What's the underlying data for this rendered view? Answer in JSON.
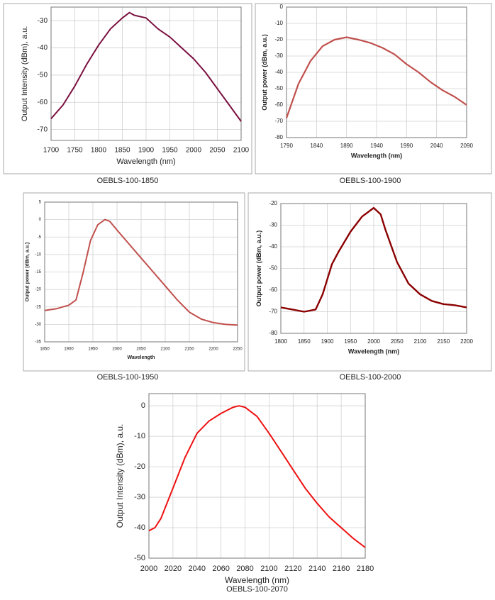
{
  "chart_data": [
    {
      "type": "line",
      "title": "OEBLS-100-1850",
      "x_label": "Wavelength (nm)",
      "y_label": "Output Intensity (dBm), a.u.",
      "x": [
        1700,
        1725,
        1750,
        1775,
        1800,
        1825,
        1850,
        1865,
        1875,
        1900,
        1925,
        1950,
        1975,
        2000,
        2025,
        2050,
        2075,
        2100
      ],
      "values": [
        -66,
        -61,
        -54,
        -46,
        -39,
        -33,
        -29,
        -27,
        -28,
        -29,
        -33,
        -36,
        -40,
        -44,
        -49,
        -55,
        -61,
        -67
      ],
      "color": "#7a1040",
      "xlim": [
        1700,
        2100
      ],
      "ylim": [
        -74,
        -25
      ],
      "xticks": [
        1700,
        1750,
        1800,
        1850,
        1900,
        1950,
        2000,
        2050,
        2100
      ],
      "yticks": [
        -70,
        -60,
        -50,
        -40,
        -30
      ],
      "grid": true
    },
    {
      "type": "line",
      "title": "OEBLS-100-1900",
      "x_label": "Wavelength (nm)",
      "y_label": "Output power (dBm, a.u.)",
      "x": [
        1790,
        1810,
        1830,
        1850,
        1870,
        1890,
        1910,
        1930,
        1950,
        1970,
        1990,
        2010,
        2030,
        2050,
        2070,
        2090
      ],
      "values": [
        -68,
        -47,
        -33,
        -24,
        -20,
        -18.5,
        -20,
        -22,
        -25,
        -29,
        -35,
        -40,
        -46,
        -51,
        -55,
        -60
      ],
      "color": "#c0504d",
      "xlim": [
        1790,
        2090
      ],
      "ylim": [
        -80,
        0
      ],
      "xticks": [
        1790,
        1840,
        1890,
        1940,
        1990,
        2040,
        2090
      ],
      "yticks": [
        -80,
        -70,
        -60,
        -50,
        -40,
        -30,
        -20,
        -10,
        0
      ],
      "grid": true
    },
    {
      "type": "line",
      "title": "OEBLS-100-1950",
      "x_label": "Wavelength",
      "y_label": "Output power (dBm, a.u.)",
      "x": [
        1850,
        1875,
        1900,
        1915,
        1930,
        1945,
        1960,
        1975,
        1985,
        2000,
        2025,
        2050,
        2075,
        2100,
        2125,
        2150,
        2175,
        2200,
        2225,
        2250
      ],
      "values": [
        -26,
        -25.5,
        -24.5,
        -23,
        -15,
        -6,
        -1.5,
        0,
        -0.5,
        -3,
        -7,
        -11,
        -15,
        -19,
        -23,
        -26.5,
        -28.5,
        -29.5,
        -30,
        -30.2
      ],
      "color": "#c0504d",
      "xlim": [
        1850,
        2250
      ],
      "ylim": [
        -35,
        5
      ],
      "xticks": [
        1850,
        1900,
        1950,
        2000,
        2050,
        2100,
        2150,
        2200,
        2250
      ],
      "yticks": [
        -35,
        -30,
        -25,
        -20,
        -15,
        -10,
        -5,
        0,
        5
      ],
      "grid": true
    },
    {
      "type": "line",
      "title": "OEBLS-100-2000",
      "x_label": "Wavelength (nm)",
      "y_label": "Output power (dBm, a.u.)",
      "x": [
        1800,
        1825,
        1850,
        1875,
        1890,
        1900,
        1910,
        1925,
        1950,
        1975,
        2000,
        2015,
        2025,
        2050,
        2075,
        2100,
        2125,
        2150,
        2175,
        2200
      ],
      "values": [
        -68,
        -69,
        -70,
        -69,
        -62,
        -55,
        -48,
        -42,
        -33,
        -26,
        -22,
        -25,
        -32,
        -47,
        -57,
        -62,
        -65,
        -66.5,
        -67,
        -68
      ],
      "color": "#8b0000",
      "xlim": [
        1800,
        2200
      ],
      "ylim": [
        -80,
        -20
      ],
      "xticks": [
        1800,
        1850,
        1900,
        1950,
        2000,
        2050,
        2100,
        2150,
        2200
      ],
      "yticks": [
        -80,
        -70,
        -60,
        -50,
        -40,
        -30,
        -20
      ],
      "grid": true
    },
    {
      "type": "line",
      "title": "OEBLS-100-2070",
      "x_label": "Wavelength (nm)",
      "y_label": "Output Intensity (dBm), a.u.",
      "x": [
        2000,
        2005,
        2010,
        2020,
        2030,
        2040,
        2050,
        2060,
        2070,
        2075,
        2080,
        2090,
        2100,
        2110,
        2120,
        2130,
        2140,
        2150,
        2160,
        2170,
        2180
      ],
      "values": [
        -41,
        -40,
        -37,
        -27,
        -17,
        -9,
        -5,
        -2.5,
        -0.5,
        0,
        -0.5,
        -3.5,
        -9,
        -15,
        -21,
        -27,
        -32,
        -36.5,
        -40,
        -43.5,
        -46.5
      ],
      "color": "#ee1111",
      "xlim": [
        2000,
        2180
      ],
      "ylim": [
        -50,
        4
      ],
      "xticks": [
        2000,
        2020,
        2040,
        2060,
        2080,
        2100,
        2120,
        2140,
        2160,
        2180
      ],
      "yticks": [
        -50,
        -40,
        -30,
        -20,
        -10,
        0
      ],
      "grid": true
    }
  ]
}
